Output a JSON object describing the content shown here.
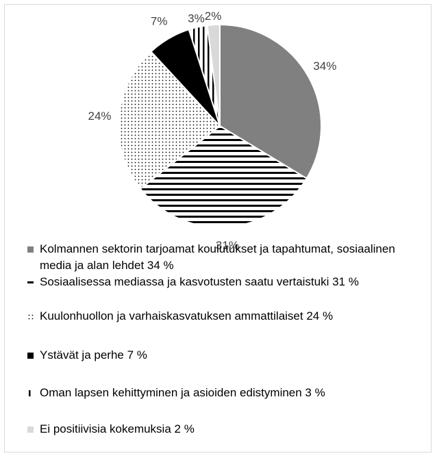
{
  "chart_data": {
    "type": "pie",
    "categories": [
      "Kolmannen sektorin tarjoamat koulutukset ja tapahtumat, sosiaalinen media ja alan lehdet 34 %",
      "Sosiaalisessa mediassa ja kasvotusten saatu vertaistuki 31 %",
      "Kuulonhuollon ja varhaiskasvatuksen ammattilaiset 24 %",
      "Ystävät ja perhe 7 %",
      "Oman lapsen kehittyminen ja asioiden edistyminen 3 %",
      "Ei positiivisia kokemuksia 2 %"
    ],
    "values": [
      34,
      31,
      24,
      7,
      3,
      2
    ],
    "value_labels": [
      "34%",
      "31%",
      "24%",
      "7%",
      "3%",
      "2%"
    ],
    "colors": [
      "#808080",
      "#000000",
      "#000000",
      "#000000",
      "#000000",
      "#d9d9d9"
    ],
    "fills": [
      "solid",
      "horizontal",
      "dots",
      "solid",
      "vertical",
      "solid"
    ],
    "legend": "bottom"
  }
}
